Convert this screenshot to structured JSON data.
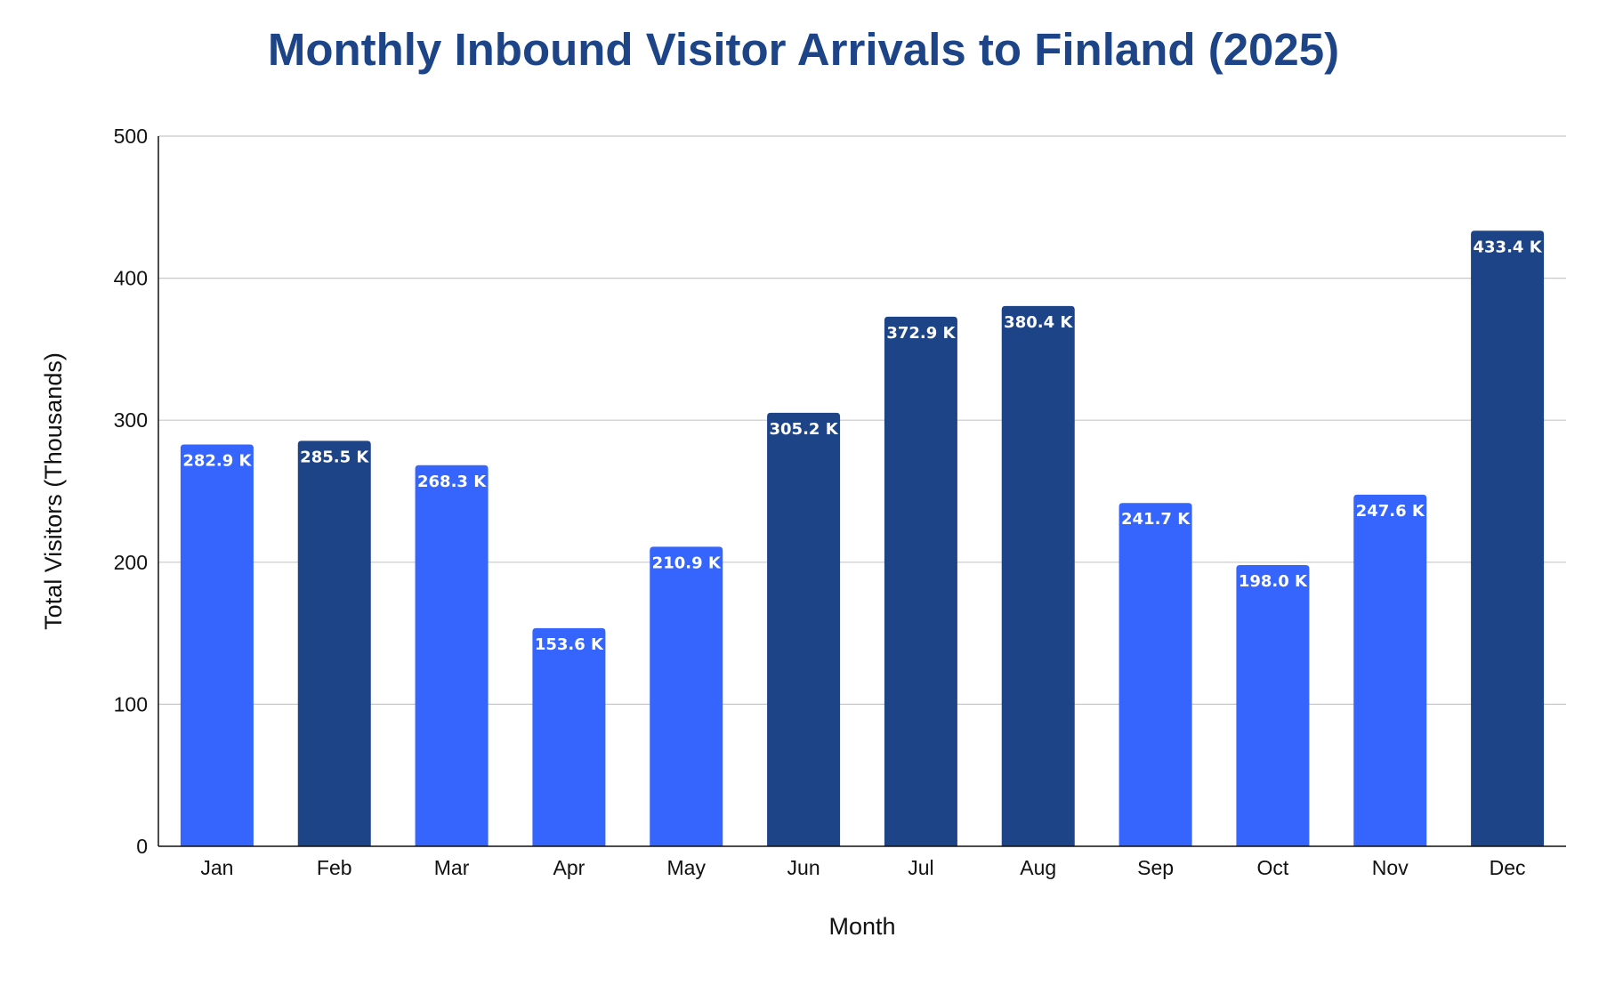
{
  "chart_data": {
    "type": "bar",
    "title": "Monthly Inbound Visitor Arrivals to Finland (2025)",
    "xlabel": "Month",
    "ylabel": "Total Visitors (Thousands)",
    "ylim": [
      0,
      500
    ],
    "yticks": [
      0,
      100,
      200,
      300,
      400,
      500
    ],
    "grid": true,
    "categories": [
      "Jan",
      "Feb",
      "Mar",
      "Apr",
      "May",
      "Jun",
      "Jul",
      "Aug",
      "Sep",
      "Oct",
      "Nov",
      "Dec"
    ],
    "values": [
      282.9,
      285.5,
      268.3,
      153.6,
      210.9,
      305.2,
      372.9,
      380.4,
      241.7,
      198.0,
      247.6,
      433.4
    ],
    "data_labels": [
      "282.9 K",
      "285.5 K",
      "268.3 K",
      "153.6 K",
      "210.9 K",
      "305.2 K",
      "372.9 K",
      "380.4 K",
      "241.7 K",
      "198.0 K",
      "247.6 K",
      "433.4 K"
    ],
    "bar_colors": [
      "#3565fd",
      "#1e4488",
      "#3565fd",
      "#3565fd",
      "#3565fd",
      "#1e4488",
      "#1e4488",
      "#1e4488",
      "#3565fd",
      "#3565fd",
      "#3565fd",
      "#1e4488"
    ],
    "colors": {
      "light_bar": "#3565fd",
      "dark_bar": "#1e4488",
      "title": "#1e4488",
      "gridline": "#c8c8c8",
      "axis": "#111111"
    }
  }
}
